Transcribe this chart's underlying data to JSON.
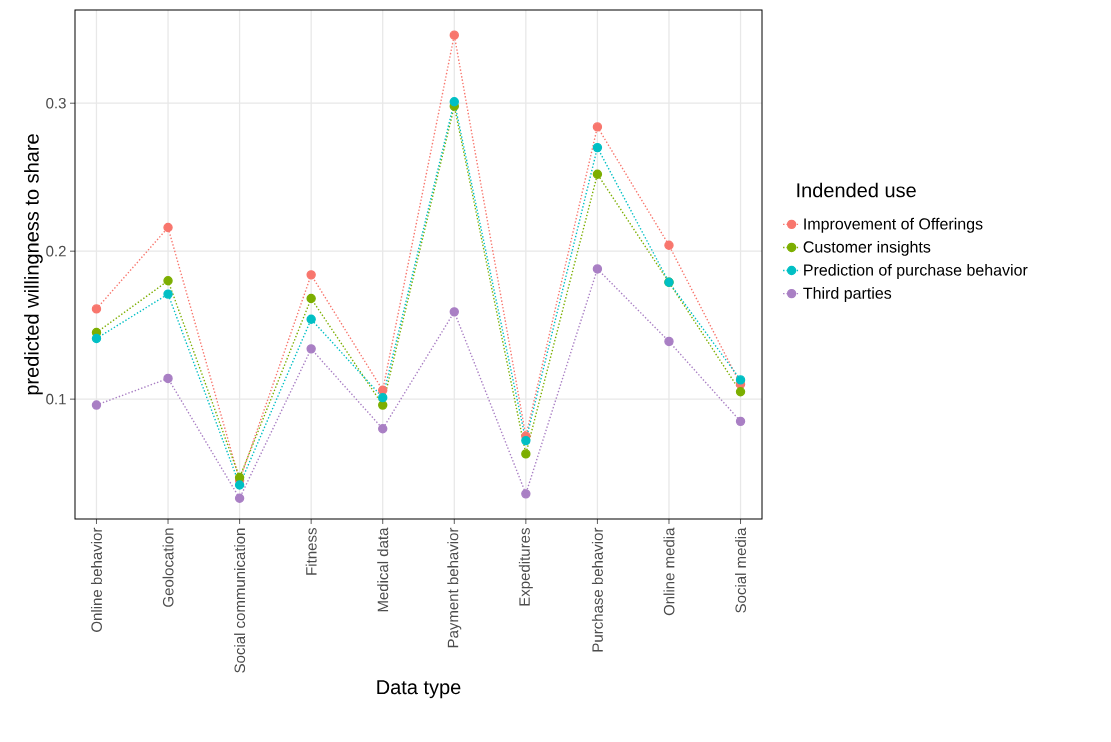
{
  "chart_data": {
    "type": "line",
    "xlabel": "Data type",
    "ylabel": "predicted willingness to share",
    "legend_title": "Indended use",
    "categories": [
      "Online behavior",
      "Geolocation",
      "Social communication",
      "Fitness",
      "Medical data",
      "Payment behavior",
      "Expeditures",
      "Purchase behavior",
      "Online media",
      "Social media"
    ],
    "series": [
      {
        "name": "Improvement of Offerings",
        "color": "#f8766d",
        "values": [
          0.161,
          0.216,
          0.045,
          0.184,
          0.106,
          0.346,
          0.075,
          0.284,
          0.204,
          0.11
        ]
      },
      {
        "name": "Customer insights",
        "color": "#7cae00",
        "values": [
          0.145,
          0.18,
          0.047,
          0.168,
          0.096,
          0.298,
          0.063,
          0.252,
          0.179,
          0.105
        ]
      },
      {
        "name": "Prediction of purchase behavior",
        "color": "#00bfc4",
        "values": [
          0.141,
          0.171,
          0.042,
          0.154,
          0.101,
          0.301,
          0.072,
          0.27,
          0.179,
          0.113
        ]
      },
      {
        "name": "Third parties",
        "color": "#a97fc4",
        "values": [
          0.096,
          0.114,
          0.033,
          0.134,
          0.08,
          0.159,
          0.036,
          0.188,
          0.139,
          0.085
        ]
      }
    ],
    "ylim": [
      0.019,
      0.363
    ],
    "yticks": [
      0.1,
      0.2,
      0.3
    ],
    "grid": true,
    "legend": "right",
    "marker": "circle",
    "line_style": "dotted"
  }
}
